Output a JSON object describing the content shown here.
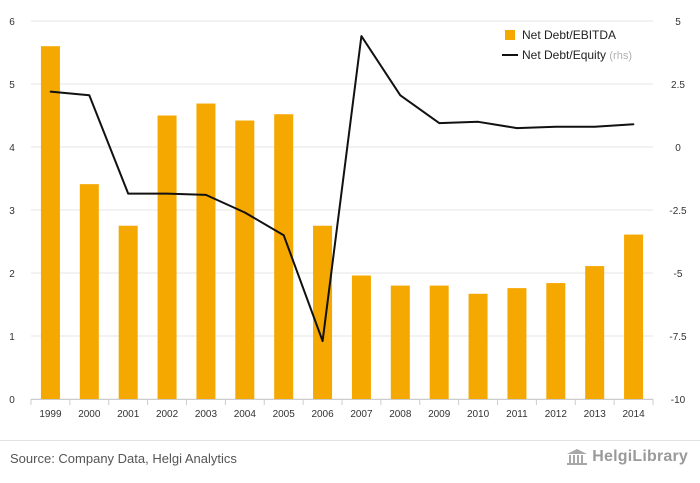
{
  "chart_data": {
    "type": "bar+line",
    "categories": [
      "1999",
      "2000",
      "2001",
      "2002",
      "2003",
      "2004",
      "2005",
      "2006",
      "2007",
      "2008",
      "2009",
      "2010",
      "2011",
      "2012",
      "2013",
      "2014"
    ],
    "series": [
      {
        "name": "Net Debt/EBITDA",
        "type": "bar",
        "axis": "left",
        "color": "#f5a800",
        "values": [
          5.6,
          3.41,
          2.75,
          4.5,
          4.69,
          4.42,
          4.52,
          2.75,
          1.96,
          1.8,
          1.8,
          1.67,
          1.76,
          1.84,
          2.11,
          2.61
        ]
      },
      {
        "name": "Net Debt/Equity",
        "legend_suffix": "(rhs)",
        "type": "line",
        "axis": "right",
        "color": "#111111",
        "values": [
          2.2,
          2.05,
          -1.85,
          -1.85,
          -1.9,
          -2.6,
          -3.5,
          -7.7,
          4.4,
          2.05,
          0.95,
          1.0,
          0.75,
          0.8,
          0.8,
          0.9
        ]
      }
    ],
    "y_left": {
      "min": 0,
      "max": 6,
      "ticks": [
        "0",
        "1",
        "2",
        "3",
        "4",
        "5",
        "6"
      ]
    },
    "y_right": {
      "min": -10,
      "max": 5,
      "ticks": [
        "-10",
        "-7.5",
        "-5",
        "-2.5",
        "0",
        "2.5",
        "5"
      ]
    },
    "grid": "horizontal",
    "legend_position": "top-right"
  },
  "footer": {
    "source": "Source: Company Data, Helgi Analytics",
    "brand": "HelgiLibrary"
  }
}
